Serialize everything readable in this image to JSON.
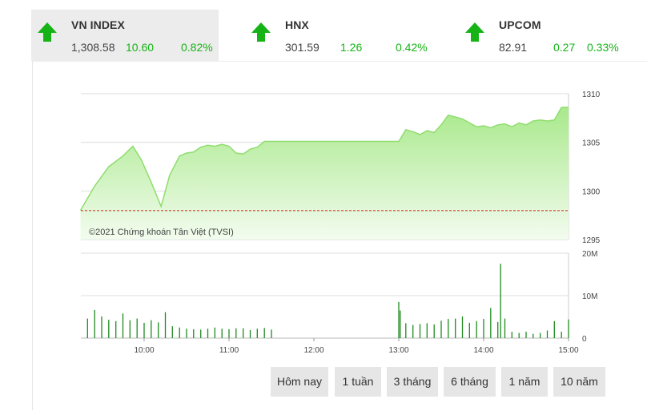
{
  "indices": [
    {
      "name": "VN INDEX",
      "value": "1,308.58",
      "change": "10.60",
      "percent": "0.82%",
      "active": true
    },
    {
      "name": "HNX",
      "value": "301.59",
      "change": "1.26",
      "percent": "0.42%",
      "active": false
    },
    {
      "name": "UPCOM",
      "value": "82.91",
      "change": "0.27",
      "percent": "0.33%",
      "active": false
    }
  ],
  "colors": {
    "up": "#16b316",
    "line": "#8fdd6e",
    "fill": "#c9f2b6",
    "volume": "#1f8a1f",
    "reference": "#d02020",
    "grid": "#dddddd"
  },
  "range_buttons": [
    "Hôm nay",
    "1 tuần",
    "3 tháng",
    "6 tháng",
    "1 năm",
    "10 năm"
  ],
  "chart_data": [
    {
      "type": "area",
      "watermark": "©2021 Chứng khoán Tân Việt (TVSI)",
      "x_ticks": [
        "10:00",
        "11:00",
        "12:00",
        "13:00",
        "14:00",
        "15:00"
      ],
      "y_ticks": [
        "1310",
        "1305",
        "1300",
        "1295"
      ],
      "ylim": [
        1295,
        1310
      ],
      "reference_value": 1297.98,
      "series": [
        {
          "x": [
            "09:15",
            "09:25",
            "09:35",
            "09:45",
            "09:52",
            "09:58",
            "10:05",
            "10:12",
            "10:18",
            "10:25",
            "10:30",
            "10:35",
            "10:40",
            "10:45",
            "10:50",
            "10:55",
            "11:00",
            "11:05",
            "11:10",
            "11:15",
            "11:20",
            "11:25",
            "11:30",
            "11:35",
            "11:45",
            "11:55",
            "12:00",
            "12:30",
            "13:00",
            "13:05",
            "13:10",
            "13:15",
            "13:20",
            "13:25",
            "13:30",
            "13:35",
            "13:40",
            "13:45",
            "13:50",
            "13:55",
            "14:00",
            "14:05",
            "14:10",
            "14:15",
            "14:20",
            "14:25",
            "14:30",
            "14:35",
            "14:40",
            "14:45",
            "14:50",
            "14:55",
            "15:00"
          ],
          "values": [
            1298.0,
            1300.5,
            1302.5,
            1303.6,
            1304.6,
            1303.2,
            1300.9,
            1298.4,
            1301.6,
            1303.6,
            1303.9,
            1304.0,
            1304.5,
            1304.7,
            1304.6,
            1304.8,
            1304.6,
            1303.9,
            1303.8,
            1304.3,
            1304.5,
            1305.1,
            1305.1,
            1305.1,
            1305.1,
            1305.1,
            1305.1,
            1305.1,
            1305.1,
            1306.3,
            1306.1,
            1305.8,
            1306.2,
            1306.0,
            1306.8,
            1307.8,
            1307.6,
            1307.4,
            1307.0,
            1306.6,
            1306.7,
            1306.5,
            1306.8,
            1306.9,
            1306.6,
            1307.0,
            1306.8,
            1307.2,
            1307.3,
            1307.2,
            1307.3,
            1308.6,
            1308.6
          ]
        }
      ]
    },
    {
      "type": "bar",
      "y_ticks": [
        "20M",
        "10M",
        "0"
      ],
      "ylim": [
        0,
        20
      ],
      "unit": "M",
      "series": [
        {
          "x": [
            "09:20",
            "09:25",
            "09:30",
            "09:35",
            "09:40",
            "09:45",
            "09:50",
            "09:55",
            "10:00",
            "10:05",
            "10:10",
            "10:15",
            "10:20",
            "10:25",
            "10:30",
            "10:35",
            "10:40",
            "10:45",
            "10:50",
            "10:55",
            "11:00",
            "11:05",
            "11:10",
            "11:15",
            "11:20",
            "11:25",
            "11:30",
            "13:00",
            "13:01",
            "13:05",
            "13:10",
            "13:15",
            "13:20",
            "13:25",
            "13:30",
            "13:35",
            "13:40",
            "13:45",
            "13:50",
            "13:55",
            "14:00",
            "14:05",
            "14:10",
            "14:12",
            "14:15",
            "14:20",
            "14:25",
            "14:30",
            "14:35",
            "14:40",
            "14:45",
            "14:50",
            "14:55",
            "15:00"
          ],
          "values": [
            4.6,
            6.6,
            5.1,
            4.3,
            4.0,
            5.8,
            4.2,
            4.6,
            3.6,
            4.2,
            3.7,
            6.1,
            2.8,
            2.5,
            2.2,
            2.1,
            2.0,
            2.2,
            2.5,
            2.2,
            2.1,
            2.3,
            2.3,
            1.9,
            2.2,
            2.4,
            2.0,
            8.5,
            6.5,
            3.5,
            3.1,
            3.3,
            3.5,
            3.2,
            4.1,
            4.5,
            4.6,
            5.1,
            3.6,
            4.0,
            4.5,
            7.1,
            3.8,
            17.5,
            4.6,
            1.5,
            1.2,
            1.5,
            1.0,
            1.2,
            1.8,
            4.0,
            1.5,
            4.4
          ]
        }
      ]
    }
  ]
}
